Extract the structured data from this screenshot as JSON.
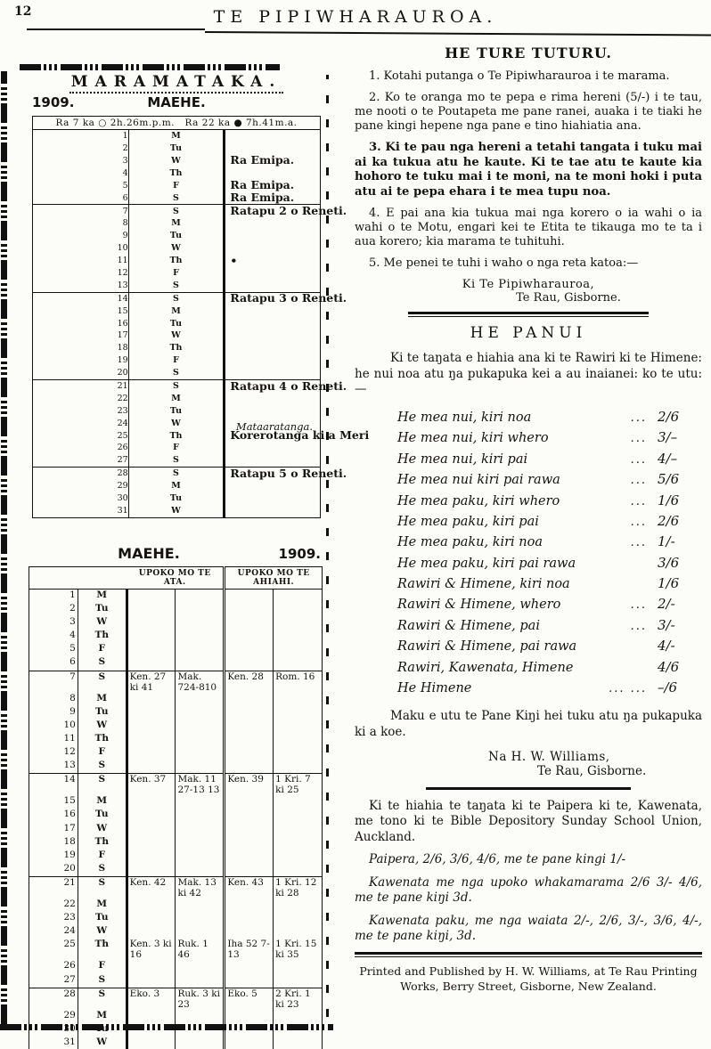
{
  "header": {
    "page_number": "12",
    "masthead": "TE  PIPIWHARAUROA."
  },
  "almanac": {
    "title": "MARAMATAKA.",
    "year": "1909.",
    "month": "MAEHE.",
    "phases": {
      "a_label": "Ra 7 ka",
      "a_glyph": "○",
      "a_time": "2h.26m.p.m.",
      "b_label": "Ra 22 ka",
      "b_glyph": "●",
      "b_time": "7h.41m.a."
    },
    "days": [
      {
        "d": 1,
        "w": "M"
      },
      {
        "d": 2,
        "w": "Tu"
      },
      {
        "d": 3,
        "w": "W",
        "note": "Ra Emipa."
      },
      {
        "d": 4,
        "w": "Th"
      },
      {
        "d": 5,
        "w": "F",
        "note": "Ra Emipa."
      },
      {
        "d": 6,
        "w": "S",
        "note": "Ra Emipa."
      },
      {
        "d": 7,
        "w": "S",
        "note": "Ratapu 2 o Reneti."
      },
      {
        "d": 8,
        "w": "M"
      },
      {
        "d": 9,
        "w": "Tu"
      },
      {
        "d": 10,
        "w": "W"
      },
      {
        "d": 11,
        "w": "Th",
        "note": "•"
      },
      {
        "d": 12,
        "w": "F"
      },
      {
        "d": 13,
        "w": "S"
      },
      {
        "d": 14,
        "w": "S",
        "note": "Ratapu 3 o Reneti."
      },
      {
        "d": 15,
        "w": "M"
      },
      {
        "d": 16,
        "w": "Tu"
      },
      {
        "d": 17,
        "w": "W"
      },
      {
        "d": 18,
        "w": "Th"
      },
      {
        "d": 19,
        "w": "F"
      },
      {
        "d": 20,
        "w": "S"
      },
      {
        "d": 21,
        "w": "S",
        "note": "Ratapu 4 o Reneti."
      },
      {
        "d": 22,
        "w": "M"
      },
      {
        "d": 23,
        "w": "Tu"
      },
      {
        "d": 24,
        "w": "W"
      },
      {
        "d": 25,
        "w": "Th",
        "note": "Korerotanga ki a Meri",
        "side": "Mataaratanga."
      },
      {
        "d": 26,
        "w": "F"
      },
      {
        "d": 27,
        "w": "S"
      },
      {
        "d": 28,
        "w": "S",
        "note": "Ratapu 5 o Reneti."
      },
      {
        "d": 29,
        "w": "M"
      },
      {
        "d": 30,
        "w": "Tu"
      },
      {
        "d": 31,
        "w": "W"
      }
    ]
  },
  "lectionary": {
    "month": "MAEHE.",
    "year": "1909.",
    "col_morning": "UPOKO MO TE ATA.",
    "col_evening": "UPOKO MO TE AHIAHI.",
    "days": [
      {
        "d": 1,
        "w": "M"
      },
      {
        "d": 2,
        "w": "Tu"
      },
      {
        "d": 3,
        "w": "W"
      },
      {
        "d": 4,
        "w": "Th"
      },
      {
        "d": 5,
        "w": "F"
      },
      {
        "d": 6,
        "w": "S"
      },
      {
        "d": 7,
        "w": "S",
        "c": [
          "Ken. 27 ki 41",
          "Mak. 724-810",
          "Ken. 28",
          "Rom. 16"
        ]
      },
      {
        "d": 8,
        "w": "M"
      },
      {
        "d": 9,
        "w": "Tu"
      },
      {
        "d": 10,
        "w": "W"
      },
      {
        "d": 11,
        "w": "Th"
      },
      {
        "d": 12,
        "w": "F"
      },
      {
        "d": 13,
        "w": "S"
      },
      {
        "d": 14,
        "w": "S",
        "c": [
          "Ken. 37",
          "Mak. 11 27-13 13",
          "Ken. 39",
          "1 Kri. 7 ki 25"
        ]
      },
      {
        "d": 15,
        "w": "M"
      },
      {
        "d": 16,
        "w": "Tu"
      },
      {
        "d": 17,
        "w": "W"
      },
      {
        "d": 18,
        "w": "Th"
      },
      {
        "d": 19,
        "w": "F"
      },
      {
        "d": 20,
        "w": "S"
      },
      {
        "d": 21,
        "w": "S",
        "c": [
          "Ken. 42",
          "Mak. 13 ki 42",
          "Ken. 43",
          "1 Kri. 12 ki 28"
        ]
      },
      {
        "d": 22,
        "w": "M"
      },
      {
        "d": 23,
        "w": "Tu"
      },
      {
        "d": 24,
        "w": "W"
      },
      {
        "d": 25,
        "w": "Th",
        "c": [
          "Ken. 3 ki 16",
          "Ruk. 1 46",
          "Iha 52 7-13",
          "1 Kri. 15 ki 35"
        ]
      },
      {
        "d": 26,
        "w": "F"
      },
      {
        "d": 27,
        "w": "S"
      },
      {
        "d": 28,
        "w": "S",
        "c": [
          "Eko. 3",
          "Ruk. 3 ki 23",
          "Eko. 5",
          "2 Kri. 1 ki 23"
        ]
      },
      {
        "d": 29,
        "w": "M"
      },
      {
        "d": 30,
        "w": "Tu"
      },
      {
        "d": 31,
        "w": "W"
      }
    ]
  },
  "ture": {
    "title": "HE TURE TUTURU.",
    "items": [
      "1. Kotahi putanga o Te Pipiwharauroa i te marama.",
      "2. Ko te oranga mo te pepa e rima hereni (5/-) i te tau, me nooti o te Poutapeta me pane ranei, auaka i te tiaki he pane kingi hepene nga pane e tino hiahiatia ana.",
      "3. Ki te pau nga hereni a tetahi tangata i tuku mai ai ka tukua atu he kaute.  Ki te tae atu te kaute kia hohoro te tuku mai i te moni, na te moni hoki i puta atu ai te pepa ehara i te mea tupu noa.",
      "4. E pai ana kia tukua mai nga korero o ia wahi o ia wahi o te Motu, engari kei te Etita te tikauga mo te ta i aua korero; kia marama te tuhituhi.",
      "5. Me penei te tuhi i waho o nga reta katoa:—"
    ],
    "addr1": "Ki Te Pipiwharauroa,",
    "addr2": "Te Rau, Gisborne."
  },
  "panui": {
    "title": "HE PANUI",
    "intro": "Ki te taŋata e hiahia ana ki te Rawiri ki te Himene: he nui noa atu ŋa pukapuka kei a au inaianei:  ko te utu:—",
    "prices": [
      {
        "item": "He mea nui, kiri noa",
        "dots": "...",
        "price": "2/6"
      },
      {
        "item": "He mea nui, kiri whero",
        "dots": "...",
        "price": "3/–"
      },
      {
        "item": "He mea nui, kiri pai",
        "dots": "...",
        "price": "4/–"
      },
      {
        "item": "He mea nui kiri pai rawa",
        "dots": "...",
        "price": "5/6"
      },
      {
        "item": "He mea paku, kiri whero",
        "dots": "...",
        "price": "1/6"
      },
      {
        "item": "He mea paku, kiri pai",
        "dots": "...",
        "price": "2/6"
      },
      {
        "item": "He mea paku, kiri noa",
        "dots": "...",
        "price": "1/-"
      },
      {
        "item": "He mea paku, kiri pai rawa",
        "dots": "",
        "price": "3/6"
      },
      {
        "item": "Rawiri & Himene, kiri noa",
        "dots": "",
        "price": "1/6"
      },
      {
        "item": "Rawiri & Himene, whero",
        "dots": "...",
        "price": "2/-"
      },
      {
        "item": "Rawiri & Himene, pai",
        "dots": "...",
        "price": "3/-"
      },
      {
        "item": "Rawiri & Himene, pai rawa",
        "dots": "",
        "price": "4/-"
      },
      {
        "item": "Rawiri, Kawenata, Himene",
        "dots": "",
        "price": "4/6"
      },
      {
        "item": "He Himene",
        "dots": "...      ...",
        "price": "–/6"
      }
    ],
    "pane_note": "Maku e utu te Pane Kiŋi hei tuku atu ŋa pukapuka ki a koe.",
    "sig_name": "Na H. W. Williams,",
    "sig_place": "Te Rau, Gisborne."
  },
  "bible": {
    "para": "Ki te hiahia te taŋata ki te Paipera ki te, Kawenata, me tono ki te Bible Depository Sunday School Union, Auckland.",
    "line1": "Paipera, 2/6, 3/6, 4/6, me te pane kingi 1/-",
    "line2": "Kawenata me nga upoko whakamarama 2/6 3/- 4/6, me te pane kiŋi 3d.",
    "line3": "Kawenata paku, me nga waiata 2/-, 2/6, 3/-, 3/6, 4/-, me te pane kiŋi, 3d."
  },
  "footer": {
    "imprint": "Printed and Published by H. W. Williams, at Te Rau Printing Works, Berry Street, Gisborne, New Zealand."
  }
}
